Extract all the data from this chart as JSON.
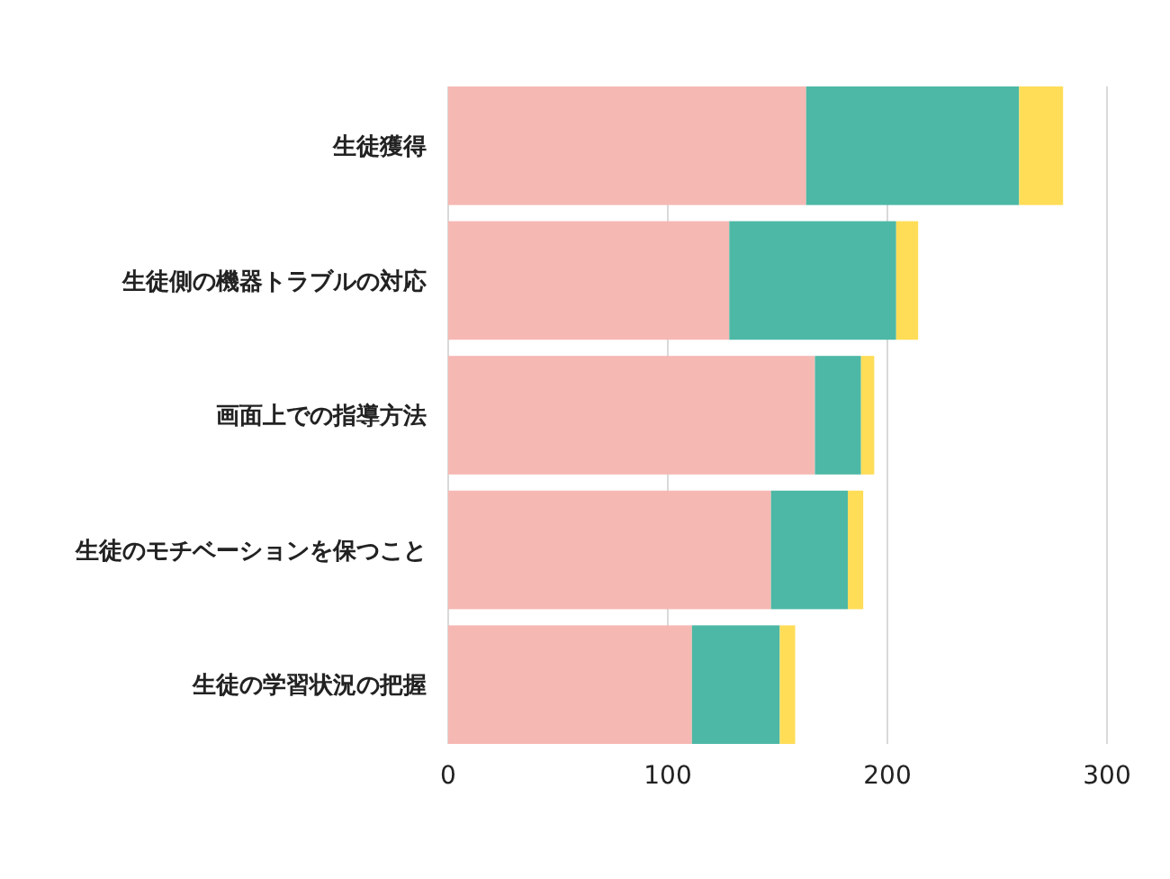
{
  "chart_data": {
    "type": "bar",
    "orientation": "horizontal",
    "stacked": true,
    "categories": [
      "生徒獲得",
      "生徒側の機器トラブルの対応",
      "画面上での指導方法",
      "生徒のモチベーションを保つこと",
      "生徒の学習状況の把握"
    ],
    "series": [
      {
        "color": "#f6b8b3",
        "values": [
          163,
          128,
          167,
          147,
          111
        ]
      },
      {
        "color": "#4db8a5",
        "values": [
          97,
          76,
          21,
          35,
          40
        ]
      },
      {
        "color": "#ffdd57",
        "values": [
          20,
          10,
          6,
          7,
          7
        ]
      }
    ],
    "xlim": [
      0,
      300
    ],
    "xticks": [
      0,
      100,
      200,
      300
    ],
    "grid": "x"
  }
}
